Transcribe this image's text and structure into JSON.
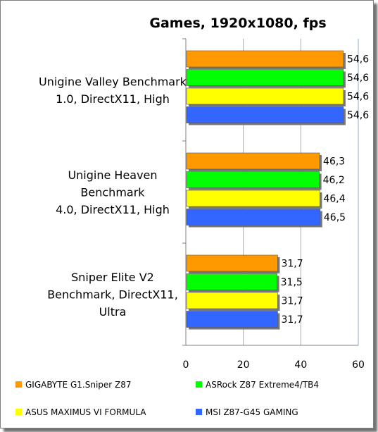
{
  "chart_data": {
    "type": "bar",
    "orientation": "horizontal",
    "title": "Games, 1920x1080, fps",
    "categories": [
      [
        "Unigine Valley Benchmark",
        "1.0, DirectX11, High"
      ],
      [
        "Unigine Heaven",
        "Benchmark",
        "4.0, DirectX11, High"
      ],
      [
        "Sniper Elite V2",
        "Benchmark, DirectX11,",
        "Ultra"
      ]
    ],
    "series": [
      {
        "name": "GIGABYTE G1.Sniper Z87",
        "color": "#ff9900",
        "values": [
          54.6,
          46.3,
          31.7
        ],
        "labels": [
          "54,6",
          "46,3",
          "31,7"
        ]
      },
      {
        "name": "ASRock Z87 Extreme4/TB4",
        "color": "#00ff00",
        "values": [
          54.6,
          46.2,
          31.5
        ],
        "labels": [
          "54,6",
          "46,2",
          "31,5"
        ]
      },
      {
        "name": "ASUS MAXIMUS VI FORMULA",
        "color": "#ffff00",
        "values": [
          54.6,
          46.4,
          31.7
        ],
        "labels": [
          "54,6",
          "46,4",
          "31,7"
        ]
      },
      {
        "name": "MSI Z87-G45 GAMING",
        "color": "#3366ff",
        "values": [
          54.6,
          46.5,
          31.7
        ],
        "labels": [
          "54,6",
          "46,5",
          "31,7"
        ]
      }
    ],
    "xlim": [
      0,
      60
    ],
    "xticks": [
      "0",
      "20",
      "40",
      "60"
    ],
    "grid": true,
    "legend_position": "bottom"
  }
}
